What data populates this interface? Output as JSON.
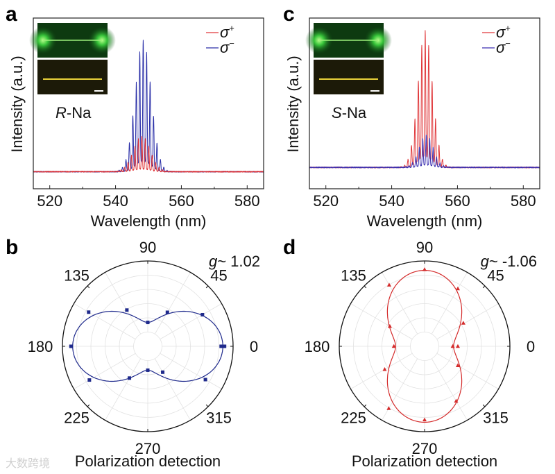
{
  "panels": {
    "a": "a",
    "b": "b",
    "c": "c",
    "d": "d"
  },
  "watermark": "大数跨境",
  "colors": {
    "sigma_plus": "#e0373a",
    "sigma_minus": "#2a2fa8",
    "polar_b": "#1f2a8c",
    "polar_d": "#d42a2a"
  },
  "chart_data": [
    {
      "id": "a",
      "type": "line",
      "xlabel": "Wavelength (nm)",
      "ylabel": "Intensity (a.u.)",
      "xlim": [
        515,
        585
      ],
      "ylim": [
        0,
        1.0
      ],
      "xticks": [
        "520",
        "540",
        "560",
        "580"
      ],
      "xtick_values": [
        520,
        540,
        560,
        580
      ],
      "annotation": {
        "italic": "R",
        "rest": "-Na"
      },
      "legend": {
        "position": "top-right",
        "entries": [
          {
            "sym": "σ",
            "sup": "+"
          },
          {
            "sym": "σ",
            "sup": "−"
          }
        ]
      },
      "series": [
        {
          "name": "σ+",
          "color": "#e0373a",
          "baseline": 0.1,
          "center": 548,
          "sigma": 3.6,
          "amplitude": 0.21,
          "fringe_period": 1.05
        },
        {
          "name": "σ−",
          "color": "#2a2fa8",
          "baseline": 0.1,
          "center": 548.4,
          "sigma": 3.4,
          "amplitude": 0.77,
          "fringe_period": 1.05
        }
      ]
    },
    {
      "id": "c",
      "type": "line",
      "xlabel": "Wavelength (nm)",
      "ylabel": "Intensity (a.u.)",
      "xlim": [
        515,
        585
      ],
      "ylim": [
        0,
        1.0
      ],
      "xticks": [
        "520",
        "540",
        "560",
        "580"
      ],
      "xtick_values": [
        520,
        540,
        560,
        580
      ],
      "annotation": {
        "italic": "S",
        "rest": "-Na"
      },
      "legend": {
        "position": "top-right",
        "entries": [
          {
            "sym": "σ",
            "sup": "+"
          },
          {
            "sym": "σ",
            "sup": "−"
          }
        ]
      },
      "series": [
        {
          "name": "σ+",
          "color": "#e0373a",
          "baseline": 0.125,
          "center": 550.2,
          "sigma": 3.1,
          "amplitude": 0.8,
          "fringe_period": 1.05
        },
        {
          "name": "σ−",
          "color": "#3a2fb0",
          "baseline": 0.125,
          "center": 550.5,
          "sigma": 3.0,
          "amplitude": 0.19,
          "fringe_period": 1.05
        }
      ]
    },
    {
      "id": "b",
      "type": "scatter",
      "projection": "polar",
      "xlabel": "Polarization detection",
      "angle_labels": [
        "0",
        "45",
        "90",
        "135",
        "180",
        "225",
        "270",
        "315"
      ],
      "angle_values": [
        0,
        45,
        90,
        135,
        180,
        225,
        270,
        315
      ],
      "g_label": {
        "italic": "g",
        "rest": "~ 1.02"
      },
      "rlim": [
        0,
        1
      ],
      "fit": {
        "form": "r = a + b·cos²θ",
        "a": 0.28,
        "b": 0.6
      },
      "points": [
        [
          0,
          0.86
        ],
        [
          0,
          0.9
        ],
        [
          30,
          0.74
        ],
        [
          60,
          0.46
        ],
        [
          90,
          0.28
        ],
        [
          120,
          0.49
        ],
        [
          150,
          0.8
        ],
        [
          180,
          0.9
        ],
        [
          210,
          0.79
        ],
        [
          240,
          0.43
        ],
        [
          270,
          0.28
        ],
        [
          300,
          0.35
        ],
        [
          330,
          0.78
        ]
      ],
      "marker": "square",
      "color": "#1f2a8c"
    },
    {
      "id": "d",
      "type": "scatter",
      "projection": "polar",
      "xlabel": "Polarization detection",
      "angle_labels": [
        "0",
        "45",
        "90",
        "135",
        "180",
        "225",
        "270",
        "315"
      ],
      "angle_values": [
        0,
        45,
        90,
        135,
        180,
        225,
        270,
        315
      ],
      "g_label": {
        "italic": "g",
        "rest": "~ -1.06"
      },
      "rlim": [
        0,
        1
      ],
      "fit": {
        "form": "r = a + b·sin²θ",
        "a": 0.34,
        "b": 0.55
      },
      "points": [
        [
          0,
          0.39
        ],
        [
          0,
          0.33
        ],
        [
          31,
          0.53
        ],
        [
          60,
          0.78
        ],
        [
          90,
          0.9
        ],
        [
          120,
          0.83
        ],
        [
          150,
          0.47
        ],
        [
          180,
          0.36
        ],
        [
          210,
          0.54
        ],
        [
          240,
          0.84
        ],
        [
          270,
          0.86
        ],
        [
          300,
          0.74
        ],
        [
          330,
          0.45
        ]
      ],
      "marker": "triangle",
      "color": "#d42a2a"
    }
  ]
}
